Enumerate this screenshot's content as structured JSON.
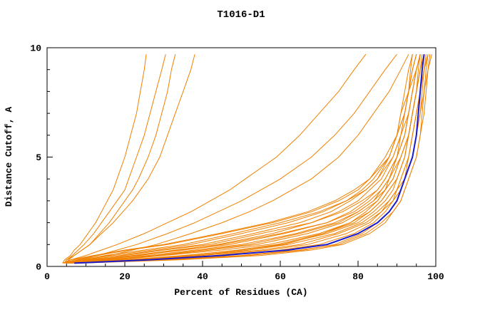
{
  "chart_data": {
    "type": "line",
    "title": "T1016-D1",
    "xlabel": "Percent of Residues (CA)",
    "ylabel": "Distance Cutoff, A",
    "xlim": [
      0,
      100
    ],
    "ylim": [
      0,
      10
    ],
    "xticks": [
      0,
      20,
      40,
      60,
      80,
      100
    ],
    "yticks": [
      0,
      5,
      10
    ],
    "x_minor_step": 5,
    "y_minor_step": 1,
    "grid": false,
    "legend": "none",
    "colors": {
      "model": "#f08000",
      "reference": "#1a1acc",
      "frame": "#000000"
    },
    "y_samples": [
      0.15,
      0.3,
      0.5,
      0.75,
      1.0,
      1.5,
      2.0,
      2.5,
      3.0,
      3.5,
      4.0,
      5.0,
      6.0,
      7.0,
      8.0,
      9.0,
      9.7
    ],
    "model_curves": [
      [
        6,
        20,
        35,
        50,
        60,
        72,
        80,
        84,
        87,
        89,
        90,
        92,
        93,
        94,
        95,
        96,
        97
      ],
      [
        5,
        15,
        28,
        40,
        52,
        65,
        75,
        80,
        84,
        86,
        88,
        90,
        92,
        93,
        94,
        95,
        96
      ],
      [
        8,
        30,
        50,
        65,
        75,
        82,
        86,
        89,
        91,
        92,
        93,
        95,
        96,
        96.5,
        97,
        97.5,
        98
      ],
      [
        5,
        10,
        20,
        30,
        42,
        55,
        68,
        76,
        81,
        85,
        87,
        90,
        92,
        93,
        94,
        95,
        96
      ],
      [
        4.5,
        8,
        15,
        25,
        35,
        48,
        60,
        70,
        77,
        82,
        85,
        89,
        91,
        93,
        94,
        95,
        96
      ],
      [
        7,
        25,
        40,
        55,
        65,
        75,
        82,
        86,
        88,
        90,
        91,
        93,
        94,
        95,
        96,
        97,
        98
      ],
      [
        6,
        18,
        30,
        45,
        57,
        70,
        78,
        83,
        86,
        88,
        90,
        92,
        93,
        94,
        95,
        96,
        97
      ],
      [
        5,
        12,
        22,
        33,
        45,
        60,
        72,
        79,
        83,
        86,
        88,
        91,
        93,
        94,
        95,
        96,
        97
      ],
      [
        6.5,
        22,
        38,
        52,
        62,
        74,
        81,
        85,
        88,
        90,
        91,
        93,
        94,
        95,
        96,
        96.5,
        97
      ],
      [
        7.5,
        28,
        46,
        60,
        70,
        79,
        84,
        87,
        89,
        91,
        92,
        94,
        95,
        96,
        96.5,
        97,
        98
      ],
      [
        4,
        6,
        12,
        20,
        30,
        44,
        57,
        67,
        74,
        79,
        83,
        88,
        90,
        92,
        93,
        95,
        96
      ],
      [
        5.5,
        16,
        26,
        38,
        50,
        64,
        74,
        80,
        84,
        87,
        89,
        91,
        93,
        94,
        95,
        96,
        97
      ],
      [
        5,
        14,
        24,
        34,
        44,
        58,
        68,
        75,
        80,
        83,
        86,
        89,
        91,
        92,
        93,
        94,
        95
      ],
      [
        4.5,
        9,
        17,
        27,
        37,
        50,
        62,
        71,
        77,
        81,
        84,
        88,
        90,
        92,
        93,
        94,
        95
      ],
      [
        7,
        24,
        40,
        52,
        61,
        71,
        78,
        82,
        85,
        87,
        88,
        90,
        91,
        92,
        93,
        93.5,
        94
      ],
      [
        5,
        11,
        19,
        29,
        40,
        53,
        65,
        73,
        78,
        82,
        85,
        88,
        90,
        91,
        92,
        93,
        94
      ],
      [
        8,
        32,
        52,
        66,
        74,
        81,
        85,
        88,
        90,
        91,
        92,
        94,
        95,
        96,
        97,
        98,
        99
      ],
      [
        4,
        7,
        13,
        21,
        31,
        45,
        58,
        68,
        75,
        80,
        83,
        87,
        90,
        91,
        93,
        94,
        95
      ],
      [
        5,
        10,
        16,
        22,
        28,
        37,
        45,
        52,
        58,
        63,
        68,
        75,
        80,
        84,
        88,
        91,
        93
      ],
      [
        4.5,
        8,
        13,
        18,
        23,
        31,
        38,
        44,
        50,
        55,
        60,
        68,
        74,
        79,
        83,
        87,
        90
      ],
      [
        4,
        6,
        10,
        14,
        18,
        25,
        31,
        37,
        42,
        47,
        51,
        59,
        65,
        70,
        75,
        79,
        82
      ],
      [
        4.5,
        5,
        6.5,
        8,
        9.5,
        12,
        14,
        16,
        18,
        20,
        21,
        23,
        25,
        26.5,
        28,
        29.5,
        30.5
      ],
      [
        4,
        4.5,
        6,
        7,
        8.5,
        10.5,
        12.5,
        14,
        15.5,
        17,
        18,
        20,
        21.5,
        23,
        24,
        25,
        25.5
      ],
      [
        5,
        5.5,
        7,
        9,
        11,
        14,
        17,
        19.5,
        22,
        24,
        26,
        29,
        31,
        33,
        35,
        37,
        38
      ],
      [
        4.5,
        5,
        7,
        9,
        11,
        13.5,
        16,
        18,
        20,
        22,
        23.5,
        26,
        28,
        29.5,
        31,
        32,
        33
      ],
      [
        6,
        21,
        36,
        49,
        59,
        71,
        79,
        83,
        86,
        88,
        90,
        92,
        93,
        94,
        95,
        96,
        96.5
      ],
      [
        5,
        13,
        23,
        35,
        47,
        61,
        72,
        78,
        82,
        85,
        87,
        90,
        92,
        93,
        94,
        95,
        96
      ],
      [
        7,
        26,
        43,
        57,
        67,
        77,
        83,
        86,
        89,
        90,
        92,
        93,
        94,
        95,
        96,
        97,
        97.5
      ],
      [
        6,
        17,
        29,
        42,
        54,
        67,
        76,
        81,
        85,
        87,
        89,
        91,
        93,
        94,
        95,
        95.5,
        96
      ],
      [
        8.5,
        34,
        55,
        68,
        76,
        83,
        87,
        89,
        91,
        92,
        93,
        95,
        96,
        97,
        97.5,
        98,
        98.5
      ]
    ],
    "reference_curve": [
      7,
      26,
      45,
      62,
      72,
      80,
      85,
      88,
      90,
      91,
      92,
      94,
      95,
      95.5,
      96,
      96.5,
      97
    ]
  }
}
